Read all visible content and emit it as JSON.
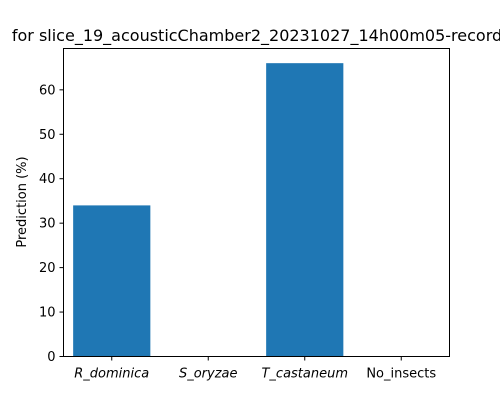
{
  "chart_data": {
    "type": "bar",
    "title": "for slice_19_acousticChamber2_20231027_14h00m05-record",
    "xlabel": "",
    "ylabel": "Prediction (%)",
    "categories": [
      "R_dominica",
      "S_oryzae",
      "T_castaneum",
      "No_insects"
    ],
    "category_italic": [
      true,
      true,
      true,
      false
    ],
    "values": [
      34,
      0,
      66,
      0
    ],
    "ylim": [
      0,
      69.3
    ],
    "yticks": [
      0,
      10,
      20,
      30,
      40,
      50,
      60
    ],
    "bar_color": "#1f77b4",
    "grid": false,
    "legend": "none"
  }
}
